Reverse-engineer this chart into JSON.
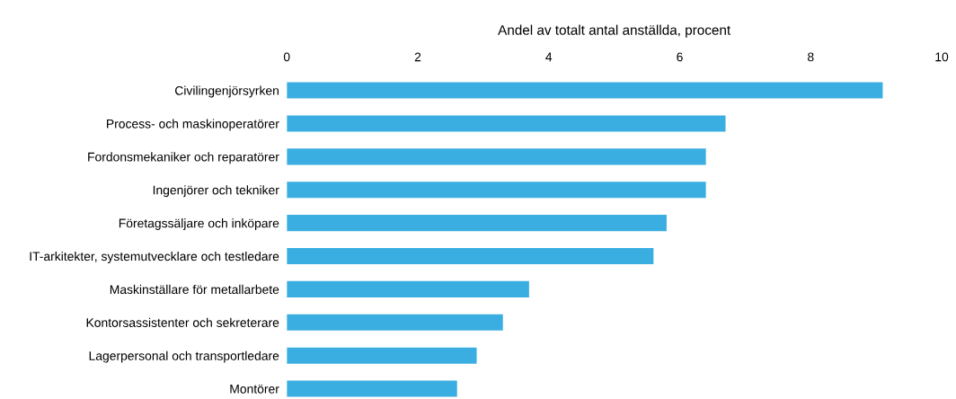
{
  "chart_data": {
    "type": "bar",
    "orientation": "horizontal",
    "xlabel": "Andel av totalt antal anställda, procent",
    "categories": [
      "Civilingenjörsyrken",
      "Process- och maskinoperatörer",
      "Fordonsmekaniker och reparatörer",
      "Ingenjörer och tekniker",
      "Företagssäljare och inköpare",
      "IT-arkitekter, systemutvecklare och testledare",
      "Maskinställare för metallarbete",
      "Kontorsassistenter och sekreterare",
      "Lagerpersonal och transportledare",
      "Montörer"
    ],
    "values": [
      9.1,
      6.7,
      6.4,
      6.4,
      5.8,
      5.6,
      3.7,
      3.3,
      2.9,
      2.6
    ],
    "color": "#3aaee0",
    "xlim": [
      0,
      10
    ],
    "xticks": [
      0,
      2,
      4,
      6,
      8,
      10
    ],
    "grid": false,
    "legend": false
  }
}
